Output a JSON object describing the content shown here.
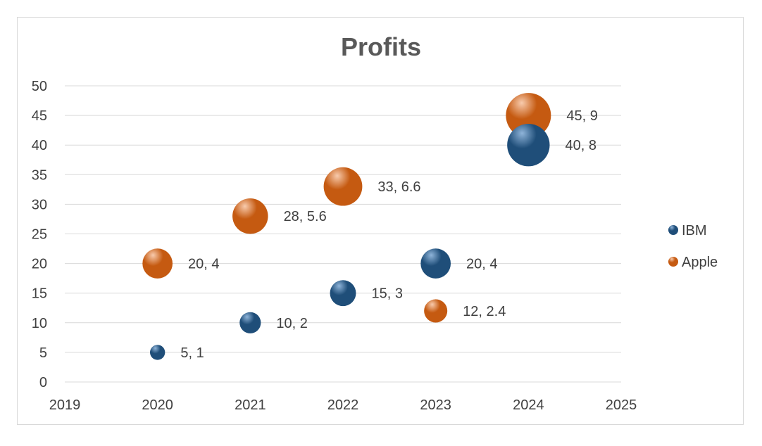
{
  "chart_data": {
    "type": "bubble",
    "title": "Profits",
    "xlabel": "",
    "ylabel": "",
    "xlim": [
      2019,
      2025
    ],
    "ylim": [
      0,
      50
    ],
    "x_ticks": [
      2019,
      2020,
      2021,
      2022,
      2023,
      2024,
      2025
    ],
    "y_ticks": [
      0,
      5,
      10,
      15,
      20,
      25,
      30,
      35,
      40,
      45,
      50
    ],
    "grid": "horizontal",
    "legend_position": "right",
    "series": [
      {
        "name": "IBM",
        "color": "#1f4e79",
        "highlight": "#8fb4d9",
        "points": [
          {
            "x": 2020,
            "y": 5,
            "size": 1,
            "label": "5, 1"
          },
          {
            "x": 2021,
            "y": 10,
            "size": 2,
            "label": "10, 2"
          },
          {
            "x": 2022,
            "y": 15,
            "size": 3,
            "label": "15, 3"
          },
          {
            "x": 2023,
            "y": 20,
            "size": 4,
            "label": "20, 4"
          },
          {
            "x": 2024,
            "y": 40,
            "size": 8,
            "label": "40, 8"
          }
        ]
      },
      {
        "name": "Apple",
        "color": "#c55a11",
        "highlight": "#f8cbad",
        "points": [
          {
            "x": 2020,
            "y": 20,
            "size": 4,
            "label": "20, 4"
          },
          {
            "x": 2021,
            "y": 28,
            "size": 5.6,
            "label": "28, 5.6"
          },
          {
            "x": 2022,
            "y": 33,
            "size": 6.6,
            "label": "33, 6.6"
          },
          {
            "x": 2023,
            "y": 12,
            "size": 2.4,
            "label": "12, 2.4"
          },
          {
            "x": 2024,
            "y": 45,
            "size": 9,
            "label": "45, 9"
          }
        ]
      }
    ]
  }
}
